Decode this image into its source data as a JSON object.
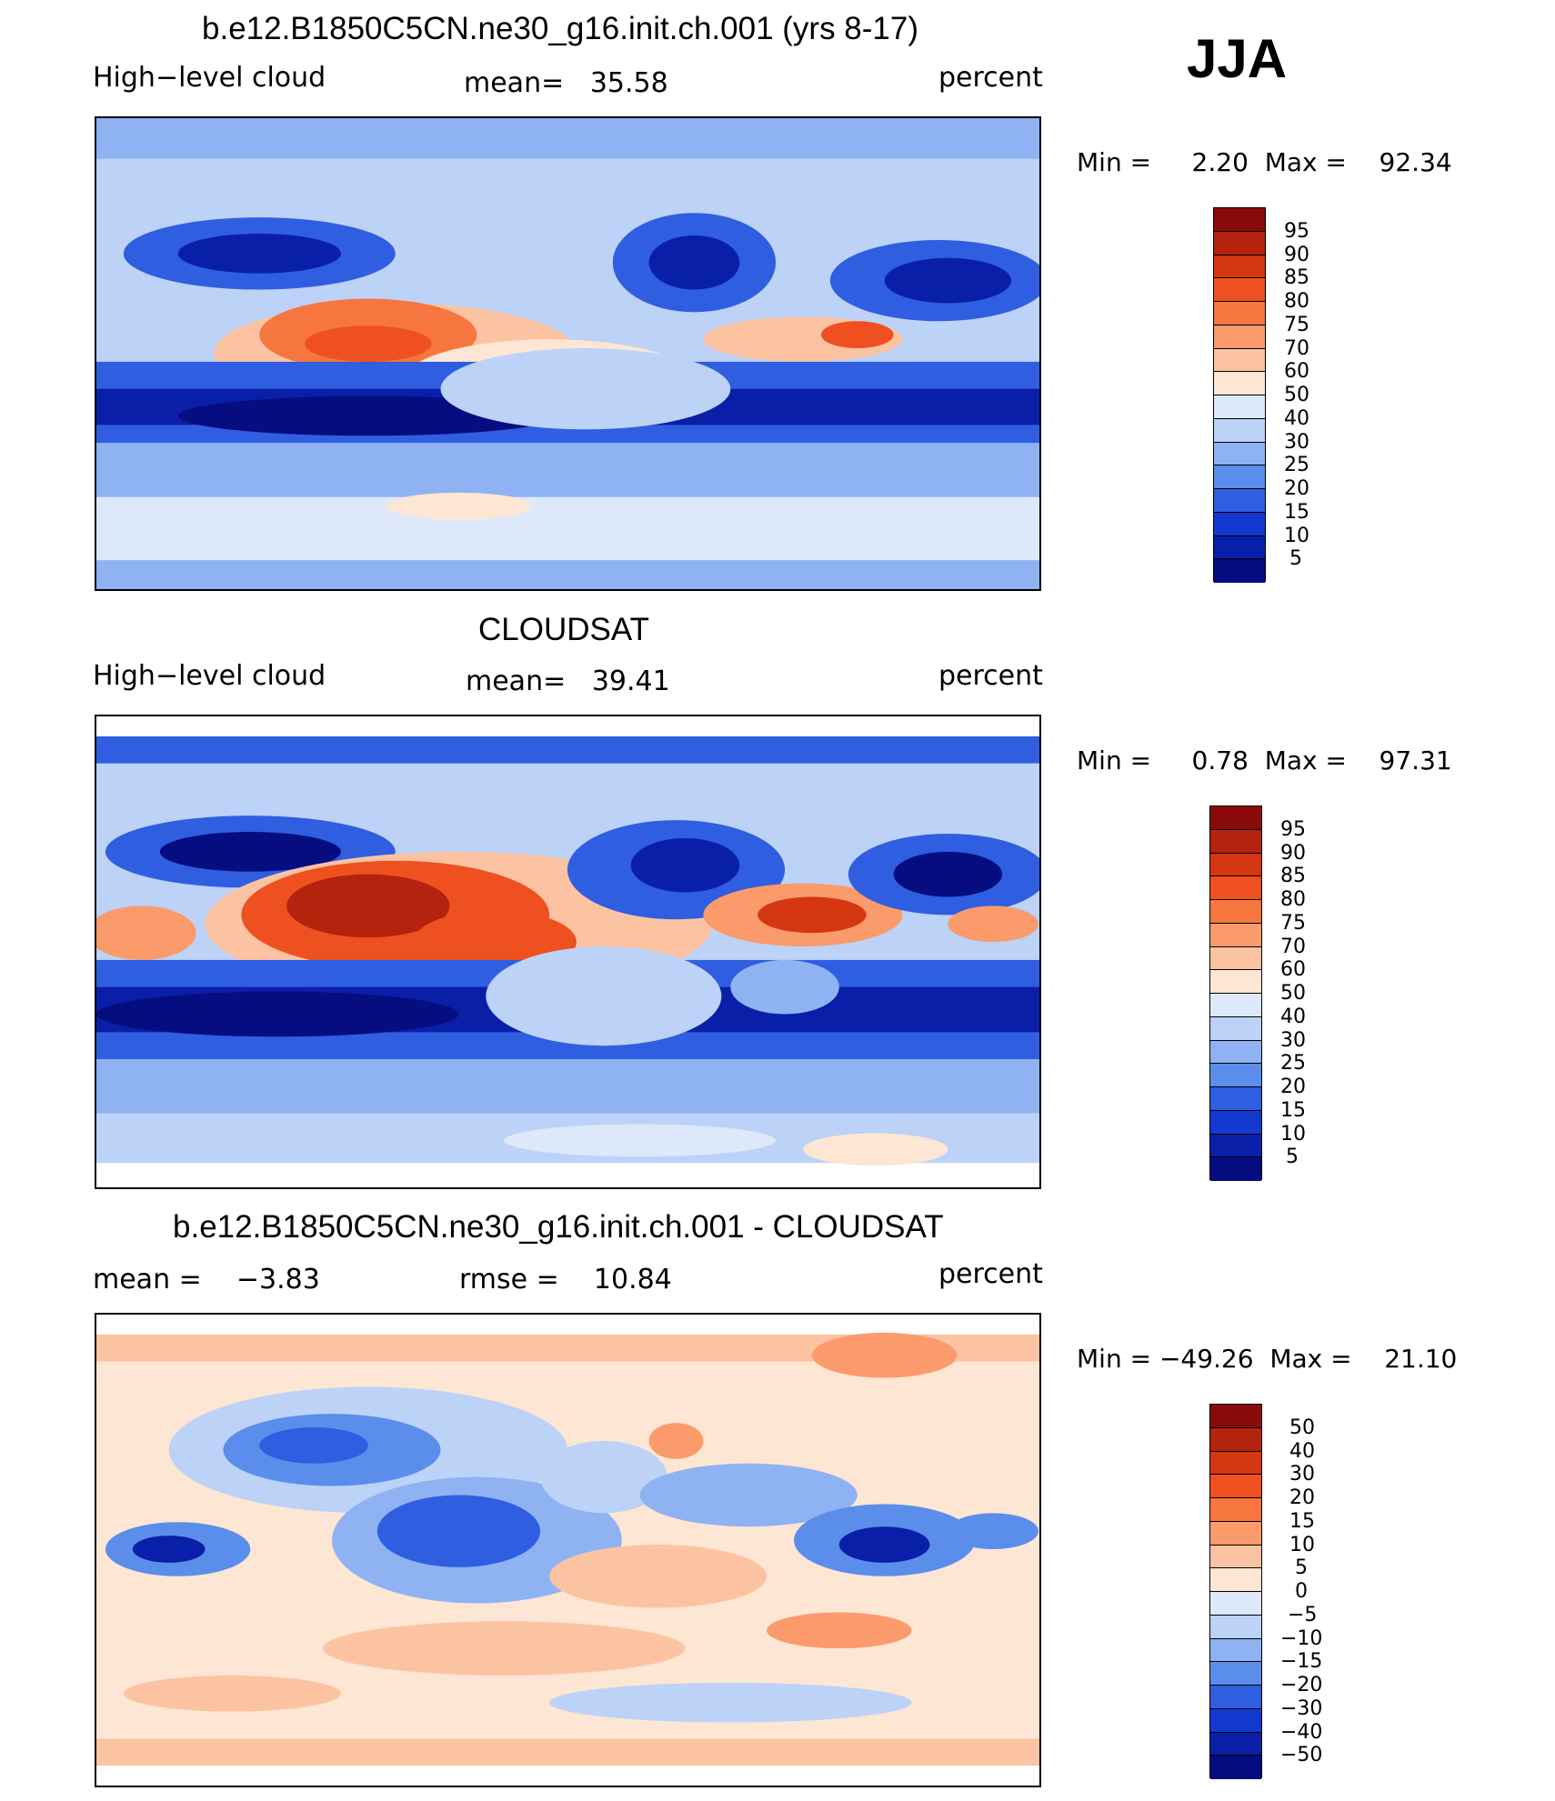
{
  "season": "JJA",
  "panels": [
    {
      "title": "b.e12.B1850C5CN.ne30_g16.init.ch.001 (yrs 8-17)",
      "left": "High−level cloud",
      "center": "mean=   35.58",
      "right": "percent",
      "minmax": "Min =     2.20  Max =    92.34"
    },
    {
      "title": "CLOUDSAT",
      "left": "High−level cloud",
      "center": "mean=   39.41",
      "right": "percent",
      "minmax": "Min =     0.78  Max =    97.31"
    },
    {
      "title": "b.e12.B1850C5CN.ne30_g16.init.ch.001 - CLOUDSAT",
      "left": "mean =    −3.83",
      "center": "rmse =    10.84",
      "right": "percent",
      "minmax": "Min = −49.26  Max =    21.10"
    }
  ],
  "chart_data": [
    {
      "type": "heatmap",
      "title": "b.e12.B1850C5CN.ne30_g16.init.ch.001 (yrs 8-17)",
      "variable": "High−level cloud",
      "units": "percent",
      "mean": 35.58,
      "min": 2.2,
      "max": 92.34,
      "colorbar_labels": [
        "95",
        "90",
        "85",
        "80",
        "75",
        "70",
        "60",
        "50",
        "40",
        "30",
        "25",
        "20",
        "15",
        "10",
        "5"
      ]
    },
    {
      "type": "heatmap",
      "title": "CLOUDSAT",
      "variable": "High−level cloud",
      "units": "percent",
      "mean": 39.41,
      "min": 0.78,
      "max": 97.31,
      "colorbar_labels": [
        "95",
        "90",
        "85",
        "80",
        "75",
        "70",
        "60",
        "50",
        "40",
        "30",
        "25",
        "20",
        "15",
        "10",
        "5"
      ]
    },
    {
      "type": "heatmap",
      "title": "b.e12.B1850C5CN.ne30_g16.init.ch.001 - CLOUDSAT",
      "units": "percent",
      "mean": -3.83,
      "rmse": 10.84,
      "min": -49.26,
      "max": 21.1,
      "colorbar_labels": [
        "50",
        "40",
        "30",
        "20",
        "15",
        "10",
        "5",
        "0",
        "−5",
        "−10",
        "−15",
        "−20",
        "−30",
        "−40",
        "−50"
      ]
    }
  ],
  "colors": {
    "scale": [
      "#8a0a0a",
      "#b3230e",
      "#d43712",
      "#ee5020",
      "#f7763f",
      "#fb9a6b",
      "#fcc3a2",
      "#fde6d3",
      "#dde9fb",
      "#bcd2f7",
      "#8fb2f2",
      "#5b8eeb",
      "#2f5ee0",
      "#1339d0",
      "#0a1fa8",
      "#050d80"
    ]
  }
}
